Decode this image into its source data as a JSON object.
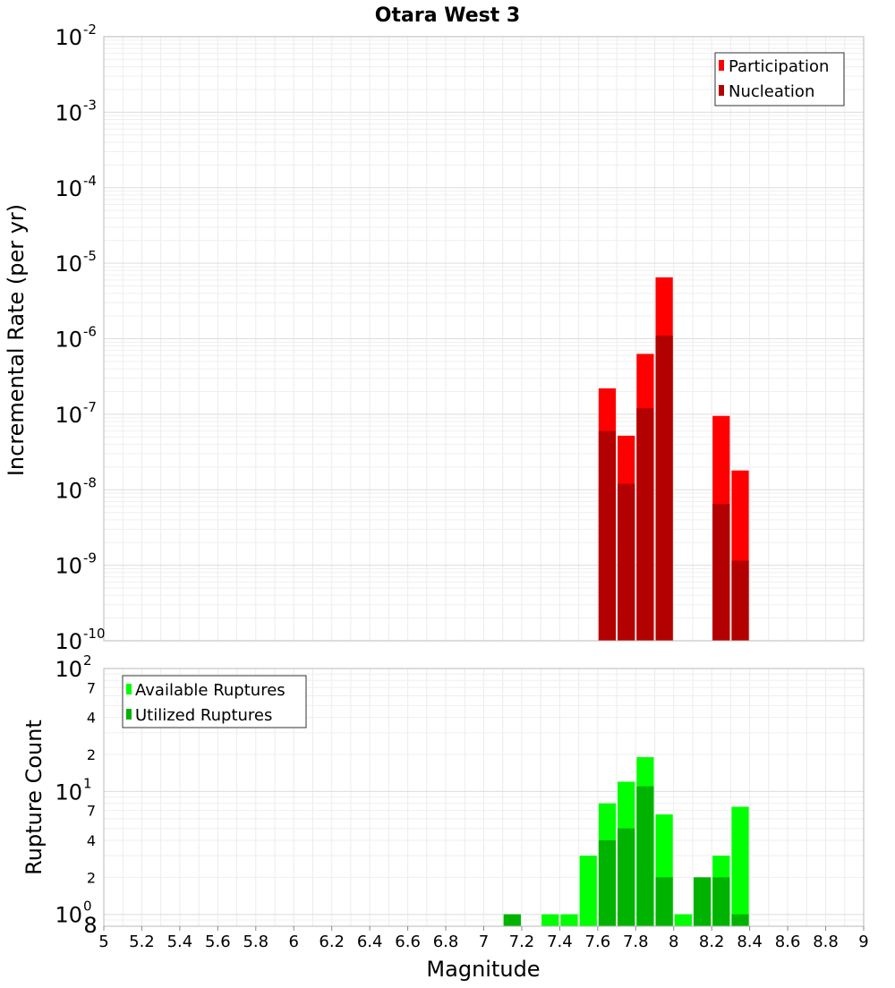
{
  "chart_data": [
    {
      "type": "bar",
      "title": "Otara West 3",
      "xlabel": "",
      "ylabel": "Incremental Rate (per yr)",
      "yscale": "log",
      "xlim": [
        5,
        9
      ],
      "ylim": [
        1e-10,
        0.01
      ],
      "y_tick_bases": [
        "10",
        "10",
        "10",
        "10",
        "10",
        "10",
        "10",
        "10",
        "10"
      ],
      "y_tick_exponents": [
        "-10",
        "-9",
        "-8",
        "-7",
        "-6",
        "-5",
        "-4",
        "-3",
        "-2"
      ],
      "grid": true,
      "legend_position": "top-right",
      "bar_width": 0.1,
      "series": [
        {
          "name": "Participation",
          "color": "#ff0000",
          "x": [
            7.65,
            7.75,
            7.85,
            7.95,
            8.25,
            8.35
          ],
          "values": [
            2.2e-07,
            5.2e-08,
            6.3e-07,
            6.5e-06,
            9.5e-08,
            1.8e-08
          ]
        },
        {
          "name": "Nucleation",
          "color": "#b30000",
          "x": [
            7.65,
            7.75,
            7.85,
            7.95,
            8.25,
            8.35
          ],
          "values": [
            6e-08,
            1.2e-08,
            1.2e-07,
            1.1e-06,
            6.5e-09,
            1.15e-09
          ]
        }
      ]
    },
    {
      "type": "bar",
      "title": "",
      "xlabel": "Magnitude",
      "ylabel": "Rupture Count",
      "yscale": "log",
      "xlim": [
        5,
        9
      ],
      "ylim": [
        0.8,
        100
      ],
      "x_ticks": [
        "5",
        "5.2",
        "5.4",
        "5.6",
        "5.8",
        "6",
        "6.2",
        "6.4",
        "6.6",
        "6.8",
        "7",
        "7.2",
        "7.4",
        "7.6",
        "7.8",
        "8",
        "8.2",
        "8.4",
        "8.6",
        "8.8",
        "9"
      ],
      "y_tick_bases": [
        "10",
        "10",
        "10"
      ],
      "y_tick_exponents": [
        "0",
        "1",
        "2"
      ],
      "y_minor_ticks": [
        "2",
        "4",
        "7",
        "2",
        "4",
        "7"
      ],
      "y_floor_label": "8",
      "grid": true,
      "legend_position": "top-left",
      "bar_width": 0.1,
      "series": [
        {
          "name": "Available Ruptures",
          "color": "#00ff00",
          "x": [
            7.15,
            7.35,
            7.45,
            7.55,
            7.65,
            7.75,
            7.85,
            7.95,
            8.05,
            8.15,
            8.25,
            8.35
          ],
          "values": [
            1,
            1,
            1,
            3,
            8,
            12,
            19,
            6.5,
            1,
            2,
            3,
            7.5
          ]
        },
        {
          "name": "Utilized Ruptures",
          "color": "#00b300",
          "x": [
            7.15,
            7.65,
            7.75,
            7.85,
            7.95,
            8.15,
            8.25,
            8.35
          ],
          "values": [
            1,
            4,
            5,
            11,
            2,
            2,
            2,
            1
          ]
        }
      ]
    }
  ]
}
